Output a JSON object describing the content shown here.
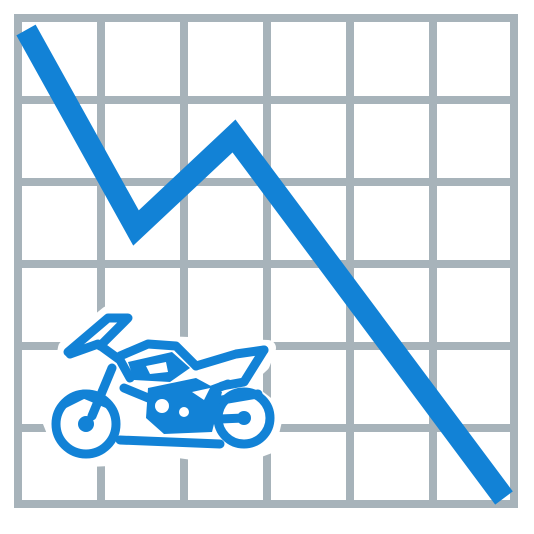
{
  "colors": {
    "grid": "#a7b3ba",
    "trend": "#1282d6",
    "background": "#ffffff"
  },
  "icons": {
    "chart": "declining-line-chart-icon",
    "vehicle": "motorcycle-icon"
  }
}
